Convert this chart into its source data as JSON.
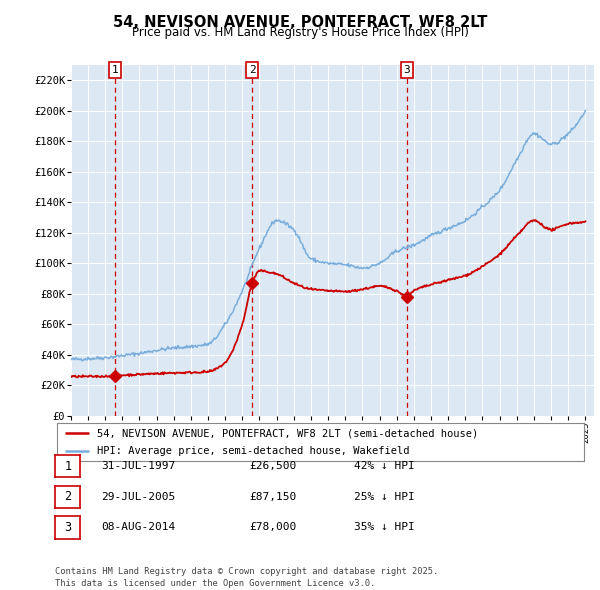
{
  "title": "54, NEVISON AVENUE, PONTEFRACT, WF8 2LT",
  "subtitle": "Price paid vs. HM Land Registry's House Price Index (HPI)",
  "legend_line1": "54, NEVISON AVENUE, PONTEFRACT, WF8 2LT (semi-detached house)",
  "legend_line2": "HPI: Average price, semi-detached house, Wakefield",
  "footer": "Contains HM Land Registry data © Crown copyright and database right 2025.\nThis data is licensed under the Open Government Licence v3.0.",
  "sale_color": "#cc0000",
  "hpi_color": "#7aaddb",
  "plot_bg_color": "#dce9f5",
  "ylim": [
    0,
    230000
  ],
  "yticks": [
    0,
    20000,
    40000,
    60000,
    80000,
    100000,
    120000,
    140000,
    160000,
    180000,
    200000,
    220000
  ],
  "ytick_labels": [
    "£0",
    "£20K",
    "£40K",
    "£60K",
    "£80K",
    "£100K",
    "£120K",
    "£140K",
    "£160K",
    "£180K",
    "£200K",
    "£220K"
  ],
  "sales": [
    {
      "date": 1997.58,
      "price": 26500,
      "label": "1"
    },
    {
      "date": 2005.58,
      "price": 87150,
      "label": "2"
    },
    {
      "date": 2014.6,
      "price": 78000,
      "label": "3"
    }
  ],
  "sale_annotations": [
    {
      "label": "1",
      "date": "31-JUL-1997",
      "price": "£26,500",
      "hpi_diff": "42% ↓ HPI"
    },
    {
      "label": "2",
      "date": "29-JUL-2005",
      "price": "£87,150",
      "hpi_diff": "25% ↓ HPI"
    },
    {
      "label": "3",
      "date": "08-AUG-2014",
      "price": "£78,000",
      "hpi_diff": "35% ↓ HPI"
    }
  ],
  "xmin": 1995.0,
  "xmax": 2025.5,
  "hpi_key_x": [
    1995,
    1996,
    1997,
    1998,
    1999,
    2000,
    2001,
    2002,
    2003,
    2004,
    2005,
    2006,
    2007,
    2008,
    2009,
    2010,
    2011,
    2012,
    2013,
    2014,
    2015,
    2016,
    2017,
    2018,
    2019,
    2020,
    2021,
    2022,
    2023,
    2024,
    2025
  ],
  "hpi_key_y": [
    37000,
    37500,
    38200,
    39500,
    41000,
    43000,
    44500,
    45500,
    47000,
    60000,
    82000,
    110000,
    128000,
    122000,
    103000,
    100000,
    99000,
    97000,
    100000,
    108000,
    112000,
    118000,
    123000,
    128000,
    137000,
    148000,
    168000,
    185000,
    178000,
    185000,
    200000
  ],
  "red_key_x": [
    1995,
    1997.0,
    1997.58,
    1998,
    1999,
    2000,
    2001,
    2002,
    2003,
    2004,
    2005.0,
    2005.58,
    2006,
    2007,
    2008,
    2009,
    2010,
    2011,
    2012,
    2013,
    2014.0,
    2014.6,
    2015,
    2016,
    2017,
    2018,
    2019,
    2020,
    2021,
    2022,
    2023,
    2024,
    2025
  ],
  "red_key_y": [
    25800,
    26000,
    26500,
    26700,
    27200,
    27800,
    28200,
    28500,
    29000,
    35000,
    60000,
    87150,
    95000,
    93000,
    87000,
    83000,
    82000,
    81500,
    83000,
    85000,
    82000,
    78000,
    82000,
    86000,
    89000,
    92000,
    98000,
    106000,
    118000,
    128000,
    122000,
    126000,
    127000
  ]
}
